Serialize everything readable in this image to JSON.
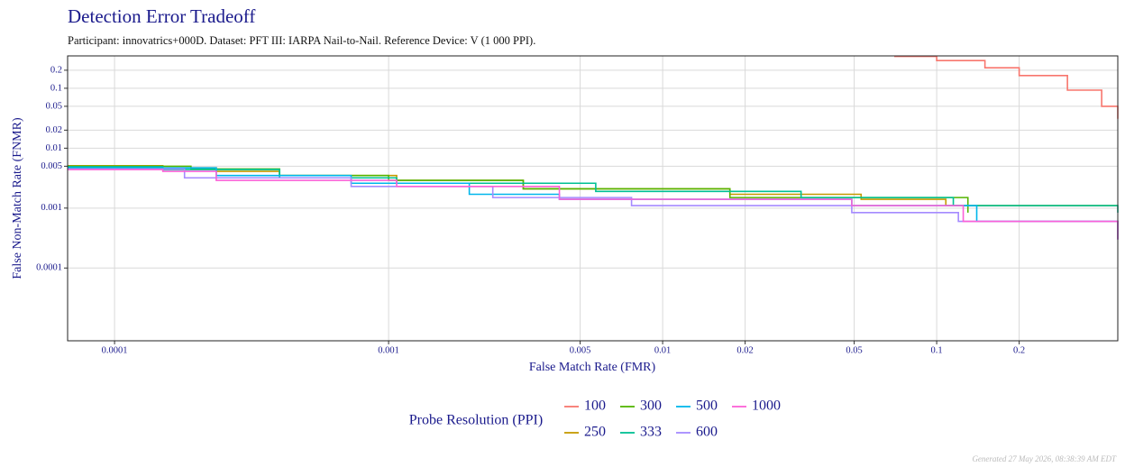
{
  "chart_data": {
    "type": "line",
    "drawstyle": "steps-post",
    "title": "Detection Error Tradeoff",
    "subtitle": "Participant: innovatrics+000D. Dataset: PFT III: IARPA Nail-to-Nail. Reference Device: V (1 000 PPI).",
    "x_label": "False Match Rate (FMR)",
    "y_label": "False Non-Match Rate (FNMR)",
    "legend_title": "Probe Resolution (PPI)",
    "footnote": "Generated 27 May 2026, 08:38:39 AM EDT",
    "xscale": "log",
    "yscale": "log",
    "grid": true,
    "legend": "bottom",
    "xlim": [
      6.74e-05,
      0.458
    ],
    "ylim": [
      6.1e-06,
      0.347
    ],
    "xticks": [
      0.0001,
      0.001,
      0.005,
      0.01,
      0.02,
      0.05,
      0.1,
      0.2
    ],
    "yticks": [
      0.0001,
      0.001,
      0.005,
      0.01,
      0.02,
      0.05,
      0.1,
      0.2
    ],
    "series": [
      {
        "name": "100",
        "color": "#F8766D",
        "x": [
          0.07,
          0.1,
          0.15,
          0.2,
          0.3,
          0.4,
          0.458
        ],
        "values": [
          0.34,
          0.29,
          0.22,
          0.163,
          0.093,
          0.05,
          0.031
        ]
      },
      {
        "name": "250",
        "color": "#C49A00",
        "x": [
          6.74e-05,
          0.00015,
          0.000235,
          0.0004,
          0.00107,
          0.0031,
          0.0176,
          0.053,
          0.108,
          0.458
        ],
        "values": [
          0.0051,
          0.0047,
          0.0041,
          0.0035,
          0.0029,
          0.0021,
          0.0017,
          0.0014,
          0.0011,
          0.0011
        ]
      },
      {
        "name": "300",
        "color": "#53B400",
        "x": [
          6.74e-05,
          0.00019,
          0.0004,
          0.001,
          0.0031,
          0.0176,
          0.13
        ],
        "values": [
          0.005,
          0.0045,
          0.0035,
          0.0029,
          0.0021,
          0.0015,
          0.00084
        ]
      },
      {
        "name": "333",
        "color": "#00C094",
        "x": [
          6.74e-05,
          0.00015,
          0.0004,
          0.00107,
          0.0057,
          0.032,
          0.115,
          0.458
        ],
        "values": [
          0.0049,
          0.0044,
          0.0032,
          0.0026,
          0.0019,
          0.0015,
          0.0011,
          0.00084
        ]
      },
      {
        "name": "500",
        "color": "#00B6EB",
        "x": [
          6.74e-05,
          0.000235,
          0.00073,
          0.00197,
          0.0042,
          0.049,
          0.14,
          0.458
        ],
        "values": [
          0.0047,
          0.0035,
          0.0026,
          0.0017,
          0.0014,
          0.0011,
          0.0006,
          0.0003
        ]
      },
      {
        "name": "600",
        "color": "#A58AFF",
        "x": [
          6.74e-05,
          0.00018,
          0.00073,
          0.0024,
          0.0077,
          0.049,
          0.12,
          0.458
        ],
        "values": [
          0.0045,
          0.0032,
          0.0023,
          0.0015,
          0.0011,
          0.00084,
          0.0006,
          0.0003
        ]
      },
      {
        "name": "1000",
        "color": "#FB61D7",
        "x": [
          6.74e-05,
          0.00015,
          0.000235,
          0.00107,
          0.0042,
          0.049,
          0.125,
          0.458
        ],
        "values": [
          0.0044,
          0.0041,
          0.0029,
          0.0023,
          0.0014,
          0.0011,
          0.0006,
          0.0003
        ]
      }
    ]
  }
}
